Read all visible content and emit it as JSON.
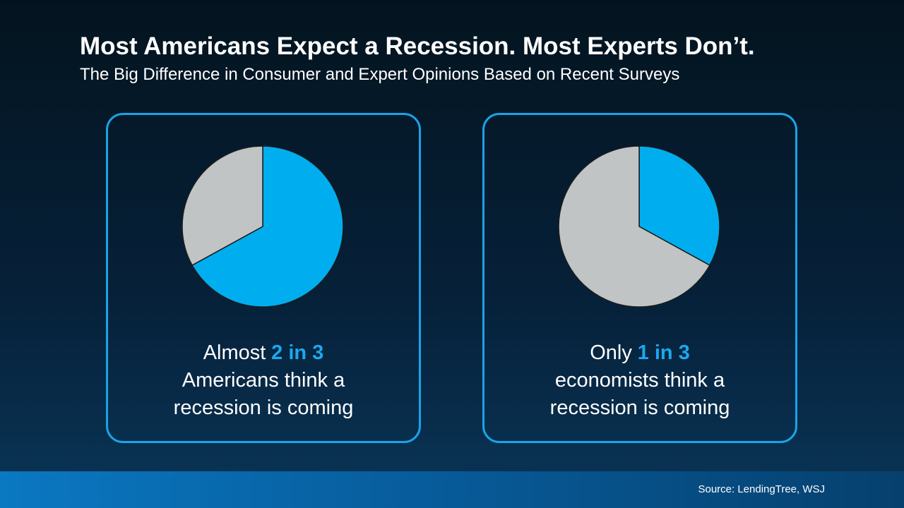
{
  "title": "Most Americans Expect a Recession. Most Experts Don’t.",
  "subtitle": "The Big Difference in Consumer and Expert Opinions Based on Recent Surveys",
  "source": "Source: LendingTree, WSJ",
  "chart_data": [
    {
      "type": "pie",
      "values": [
        67,
        33
      ],
      "colors": [
        "#00aeef",
        "#c1c4c5"
      ],
      "caption": {
        "prefix": "Almost",
        "highlight": "2 in 3",
        "lines": [
          "Americans think a",
          "recession is coming"
        ]
      }
    },
    {
      "type": "pie",
      "values": [
        33,
        67
      ],
      "colors": [
        "#00aeef",
        "#c1c4c5"
      ],
      "caption": {
        "prefix": "Only",
        "highlight": "1 in 3",
        "lines": [
          "economists think a",
          "recession is coming"
        ]
      }
    }
  ]
}
